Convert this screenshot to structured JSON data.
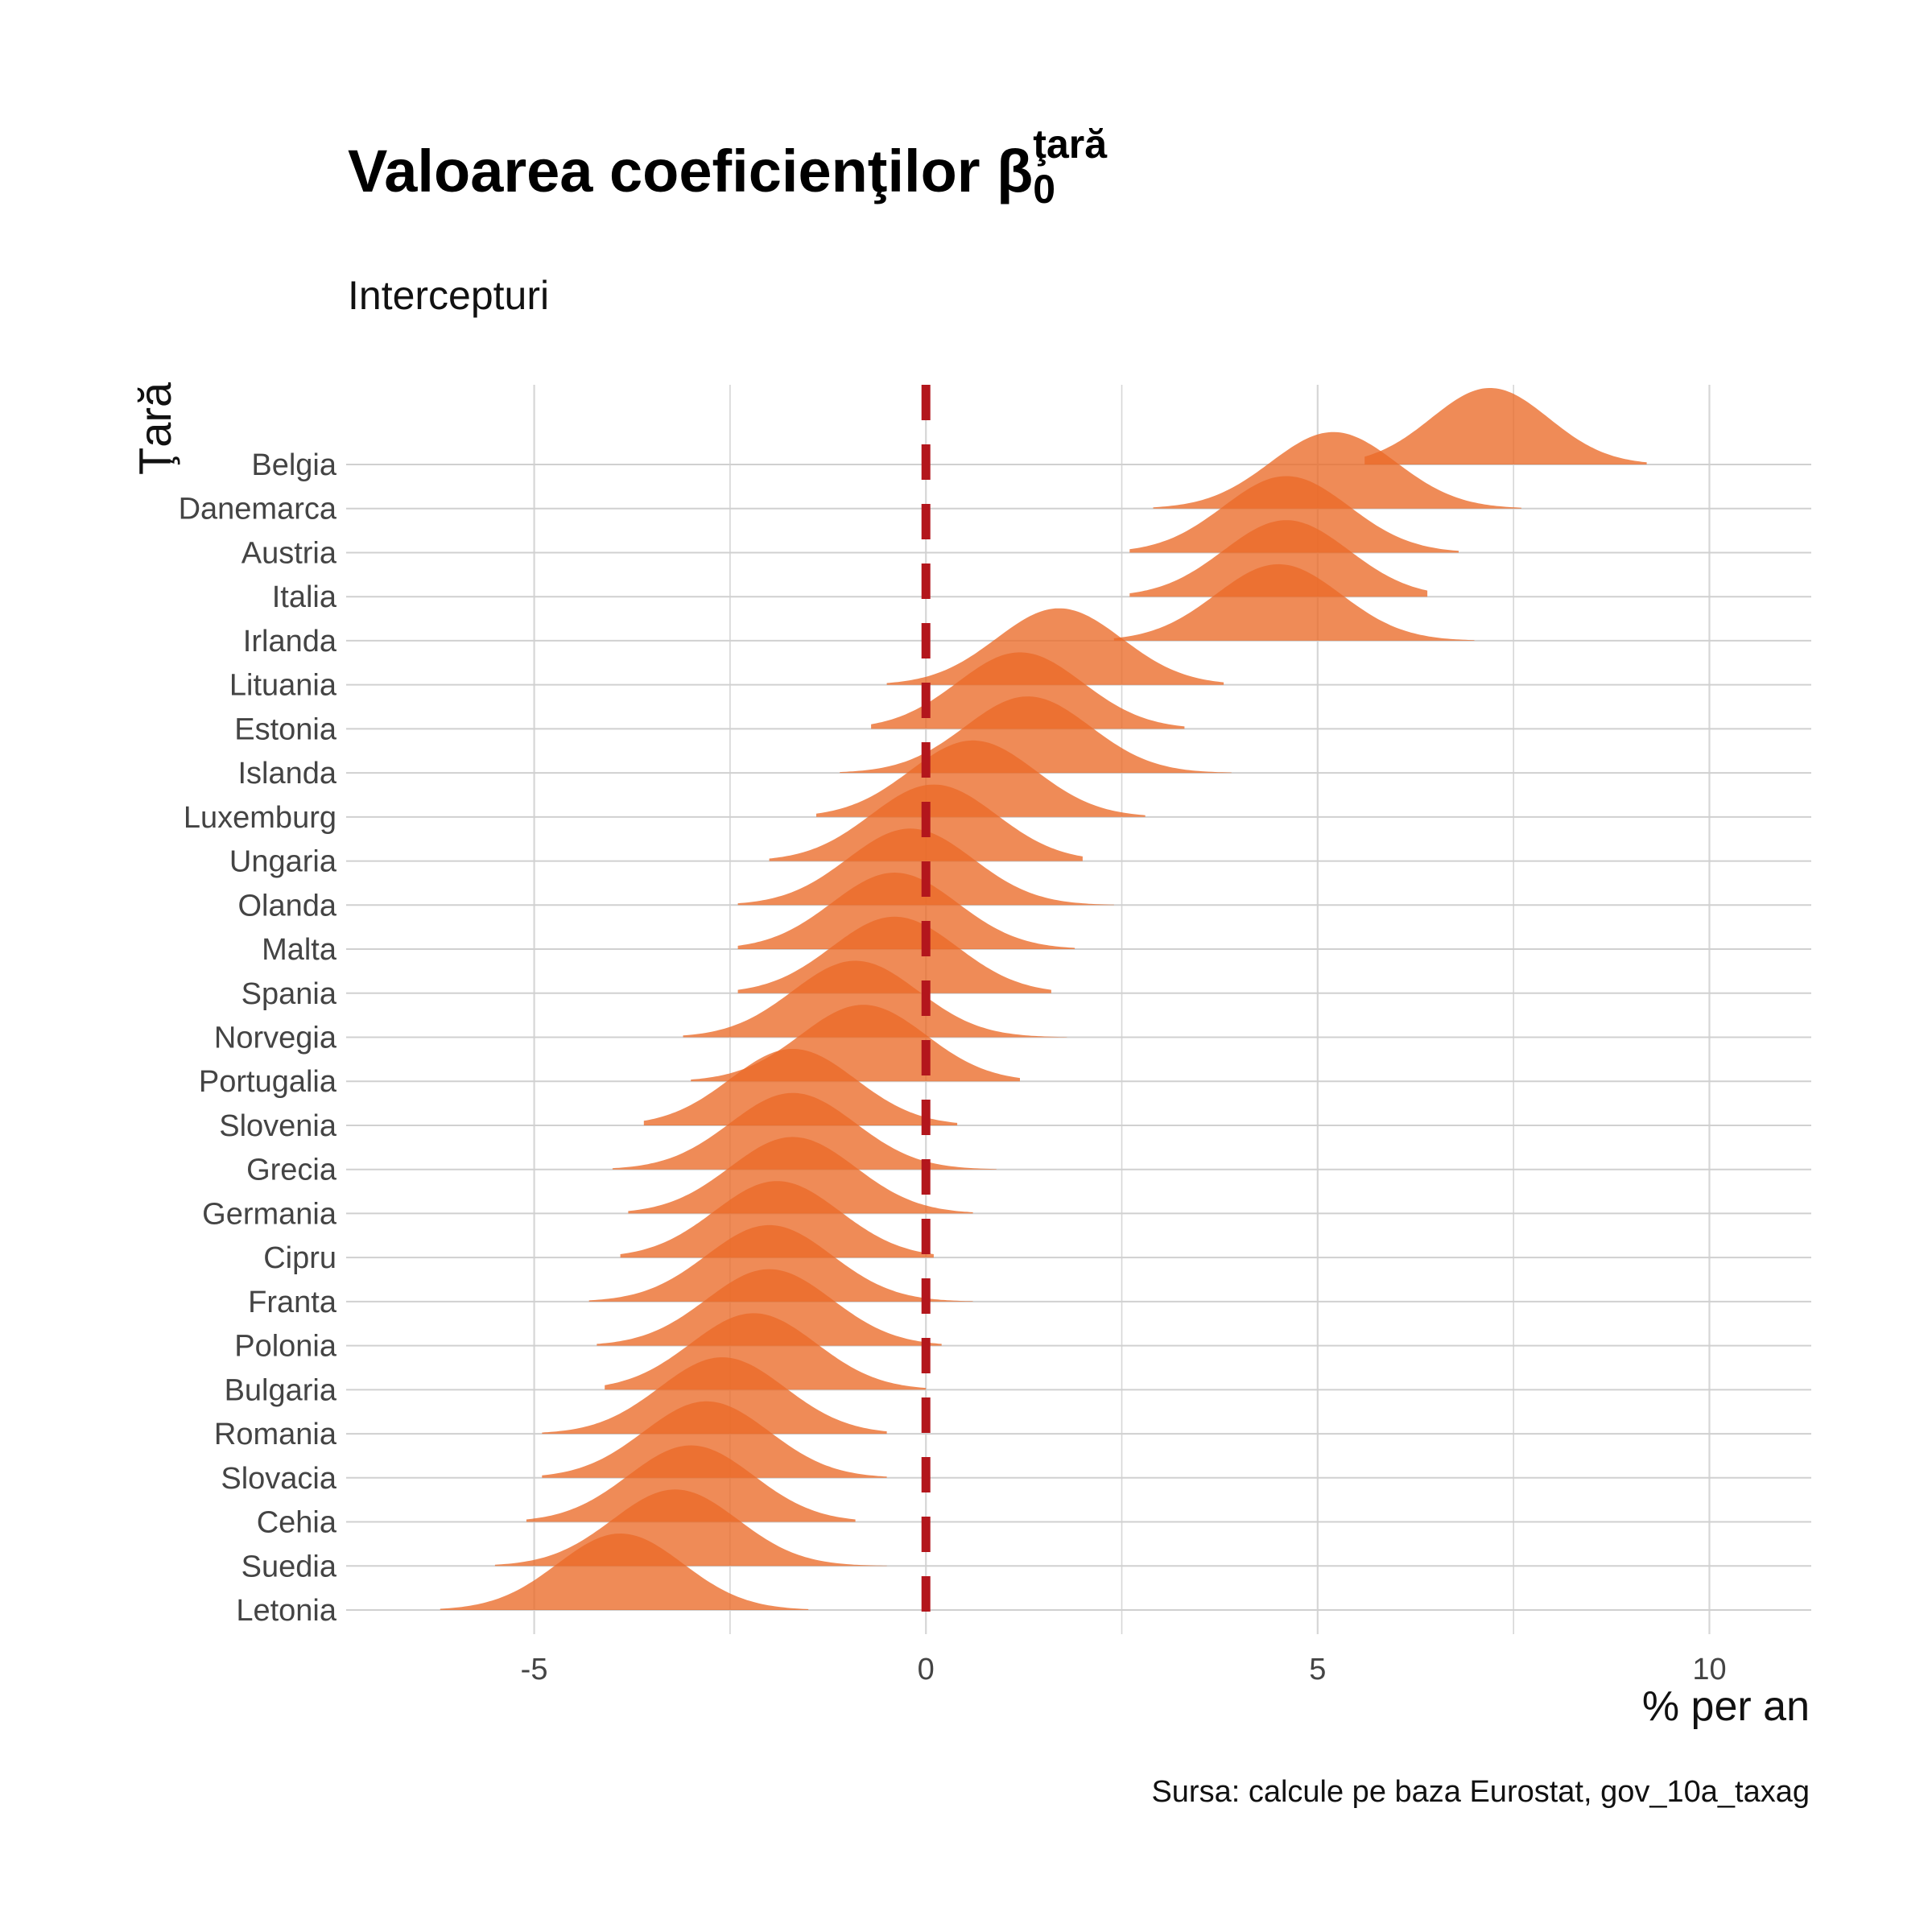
{
  "title": "Valoarea coeficienţilor β",
  "title_sup": "ţară",
  "title_sub": "0",
  "subtitle": "Intercepturi",
  "caption": "Sursa: calcule pe baza Eurostat, gov_10a_taxag",
  "chart_data": {
    "type": "ridgeline",
    "title": "Valoarea coeficienţilor β 0 ţară",
    "subtitle": "Intercepturi",
    "xlabel": "% per an",
    "ylabel": "Ţară",
    "xlim": [
      -7.4,
      11.3
    ],
    "xticks": [
      -5,
      0,
      5,
      10
    ],
    "grid": true,
    "reference_line": {
      "x": 0,
      "style": "dashed",
      "color": "#B3161C"
    },
    "fill_color": "#EA6A28",
    "categories": [
      "Belgia",
      "Danemarca",
      "Austria",
      "Italia",
      "Irlanda",
      "Lituania",
      "Estonia",
      "Islanda",
      "Luxemburg",
      "Ungaria",
      "Olanda",
      "Malta",
      "Spania",
      "Norvegia",
      "Portugalia",
      "Slovenia",
      "Grecia",
      "Germania",
      "Cipru",
      "Franta",
      "Polonia",
      "Bulgaria",
      "Romania",
      "Slovacia",
      "Cehia",
      "Suedia",
      "Letonia"
    ],
    "series": [
      {
        "category": "Belgia",
        "mode": 7.2,
        "sd": 0.75,
        "min": 5.6,
        "max": 9.2
      },
      {
        "category": "Danemarca",
        "mode": 5.2,
        "sd": 0.8,
        "min": 2.9,
        "max": 7.6
      },
      {
        "category": "Austria",
        "mode": 4.6,
        "sd": 0.8,
        "min": 2.6,
        "max": 6.8
      },
      {
        "category": "Italia",
        "mode": 4.6,
        "sd": 0.8,
        "min": 2.6,
        "max": 6.4
      },
      {
        "category": "Irlanda",
        "mode": 4.5,
        "sd": 0.8,
        "min": 2.4,
        "max": 7.0
      },
      {
        "category": "Lituania",
        "mode": 1.7,
        "sd": 0.8,
        "min": -0.5,
        "max": 3.8
      },
      {
        "category": "Estonia",
        "mode": 1.2,
        "sd": 0.8,
        "min": -0.7,
        "max": 3.3
      },
      {
        "category": "Islanda",
        "mode": 1.3,
        "sd": 0.8,
        "min": -1.1,
        "max": 3.9
      },
      {
        "category": "Luxemburg",
        "mode": 0.6,
        "sd": 0.8,
        "min": -1.4,
        "max": 2.8
      },
      {
        "category": "Ungaria",
        "mode": 0.1,
        "sd": 0.8,
        "min": -2.0,
        "max": 2.0
      },
      {
        "category": "Olanda",
        "mode": -0.2,
        "sd": 0.8,
        "min": -2.4,
        "max": 2.4
      },
      {
        "category": "Malta",
        "mode": -0.4,
        "sd": 0.8,
        "min": -2.4,
        "max": 1.9
      },
      {
        "category": "Spania",
        "mode": -0.4,
        "sd": 0.8,
        "min": -2.4,
        "max": 1.6
      },
      {
        "category": "Norvegia",
        "mode": -0.9,
        "sd": 0.8,
        "min": -3.1,
        "max": 1.8
      },
      {
        "category": "Portugalia",
        "mode": -0.8,
        "sd": 0.8,
        "min": -3.0,
        "max": 1.2
      },
      {
        "category": "Slovenia",
        "mode": -1.7,
        "sd": 0.8,
        "min": -3.6,
        "max": 0.4
      },
      {
        "category": "Grecia",
        "mode": -1.7,
        "sd": 0.8,
        "min": -4.0,
        "max": 0.9
      },
      {
        "category": "Germania",
        "mode": -1.7,
        "sd": 0.8,
        "min": -3.8,
        "max": 0.6
      },
      {
        "category": "Cipru",
        "mode": -1.9,
        "sd": 0.8,
        "min": -3.9,
        "max": 0.1
      },
      {
        "category": "Franta",
        "mode": -2.0,
        "sd": 0.8,
        "min": -4.3,
        "max": 0.6
      },
      {
        "category": "Polonia",
        "mode": -2.0,
        "sd": 0.8,
        "min": -4.2,
        "max": 0.2
      },
      {
        "category": "Bulgaria",
        "mode": -2.2,
        "sd": 0.8,
        "min": -4.1,
        "max": 0.0
      },
      {
        "category": "Romania",
        "mode": -2.6,
        "sd": 0.8,
        "min": -4.9,
        "max": -0.5
      },
      {
        "category": "Slovacia",
        "mode": -2.8,
        "sd": 0.8,
        "min": -4.9,
        "max": -0.5
      },
      {
        "category": "Cehia",
        "mode": -3.0,
        "sd": 0.8,
        "min": -5.1,
        "max": -0.9
      },
      {
        "category": "Suedia",
        "mode": -3.2,
        "sd": 0.8,
        "min": -5.5,
        "max": -0.5
      },
      {
        "category": "Letonia",
        "mode": -3.9,
        "sd": 0.8,
        "min": -6.2,
        "max": -1.5
      }
    ]
  }
}
